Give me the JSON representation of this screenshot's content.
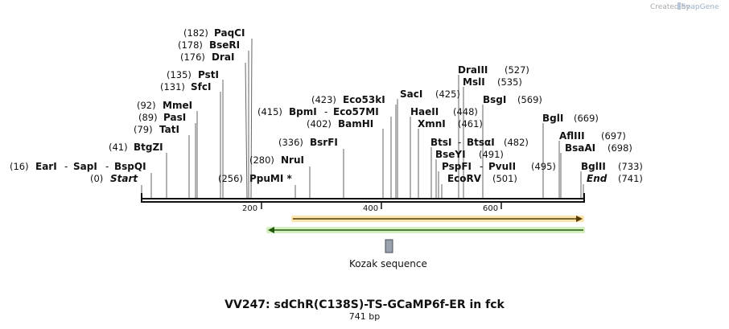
{
  "watermark": {
    "created_by": "Created by",
    "brand": "SnapGene"
  },
  "map": {
    "title": "VV247: sdChR(C138S)-TS-GCaMP6f-ER in fck",
    "length_label": "741 bp",
    "length_bp": 741,
    "scale_ticks": [
      "200",
      "400",
      "600"
    ],
    "features": [
      {
        "name": "orange-arrow",
        "color": "#f5a623",
        "halo": "#fbe6b0",
        "direction": "forward"
      },
      {
        "name": "green-arrow",
        "color": "#7fc04a",
        "halo": "#d6efc0",
        "direction": "reverse"
      },
      {
        "name": "kozak",
        "label": "Kozak sequence",
        "color": "#9aa2ad"
      }
    ],
    "sites": [
      {
        "key": "start",
        "pos_label": "(0)",
        "enzymes": [
          "Start"
        ],
        "italic": true
      },
      {
        "key": "earI",
        "pos_label": "(16)",
        "enzymes": [
          "EarI",
          "SapI",
          "BspQI"
        ]
      },
      {
        "key": "btgZI",
        "pos_label": "(41)",
        "enzymes": [
          "BtgZI"
        ]
      },
      {
        "key": "tatI",
        "pos_label": "(79)",
        "enzymes": [
          "TatI"
        ]
      },
      {
        "key": "pasI",
        "pos_label": "(89)",
        "enzymes": [
          "PasI"
        ]
      },
      {
        "key": "mmeI",
        "pos_label": "(92)",
        "enzymes": [
          "MmeI"
        ]
      },
      {
        "key": "sfcI",
        "pos_label": "(131)",
        "enzymes": [
          "SfcI"
        ]
      },
      {
        "key": "pstI",
        "pos_label": "(135)",
        "enzymes": [
          "PstI"
        ]
      },
      {
        "key": "draI",
        "pos_label": "(176)",
        "enzymes": [
          "DraI"
        ]
      },
      {
        "key": "bseRI",
        "pos_label": "(178)",
        "enzymes": [
          "BseRI"
        ]
      },
      {
        "key": "paqCI",
        "pos_label": "(182)",
        "enzymes": [
          "PaqCI"
        ]
      },
      {
        "key": "ppuMI",
        "pos_label": "(256)",
        "enzymes": [
          "PpuMI *"
        ]
      },
      {
        "key": "nruI",
        "pos_label": "(280)",
        "enzymes": [
          "NruI"
        ]
      },
      {
        "key": "bsrFI",
        "pos_label": "(336)",
        "enzymes": [
          "BsrFI"
        ]
      },
      {
        "key": "bamHI",
        "pos_label": "(402)",
        "enzymes": [
          "BamHI"
        ]
      },
      {
        "key": "bpmI",
        "pos_label": "(415)",
        "enzymes": [
          "BpmI",
          "Eco57MI"
        ]
      },
      {
        "key": "eco53kI",
        "pos_label": "(423)",
        "enzymes": [
          "Eco53kI"
        ]
      },
      {
        "key": "sacI",
        "pos_label": "(425)",
        "enzymes": [
          "SacI"
        ]
      },
      {
        "key": "haeII",
        "pos_label": "(448)",
        "enzymes": [
          "HaeII"
        ]
      },
      {
        "key": "xmnI",
        "pos_label": "(461)",
        "enzymes": [
          "XmnI"
        ]
      },
      {
        "key": "btsI",
        "pos_label": "(482)",
        "enzymes": [
          "BtsI",
          "BtsαI"
        ]
      },
      {
        "key": "bseYI",
        "pos_label": "(491)",
        "enzymes": [
          "BseYI"
        ]
      },
      {
        "key": "pspFI",
        "pos_label": "(495)",
        "enzymes": [
          "PspFI",
          "PvuII"
        ]
      },
      {
        "key": "ecoRV",
        "pos_label": "(501)",
        "enzymes": [
          "EcoRV"
        ]
      },
      {
        "key": "draIII",
        "pos_label": "(527)",
        "enzymes": [
          "DraIII"
        ]
      },
      {
        "key": "mslI",
        "pos_label": "(535)",
        "enzymes": [
          "MslI"
        ]
      },
      {
        "key": "bsgI",
        "pos_label": "(569)",
        "enzymes": [
          "BsgI"
        ]
      },
      {
        "key": "bglI",
        "pos_label": "(669)",
        "enzymes": [
          "BglI"
        ]
      },
      {
        "key": "aflIII",
        "pos_label": "(697)",
        "enzymes": [
          "AflIII"
        ]
      },
      {
        "key": "bsaAI",
        "pos_label": "(698)",
        "enzymes": [
          "BsaAI"
        ]
      },
      {
        "key": "bglII",
        "pos_label": "(733)",
        "enzymes": [
          "BglII"
        ]
      },
      {
        "key": "end",
        "pos_label": "(741)",
        "enzymes": [
          "End"
        ],
        "italic": true
      }
    ]
  }
}
